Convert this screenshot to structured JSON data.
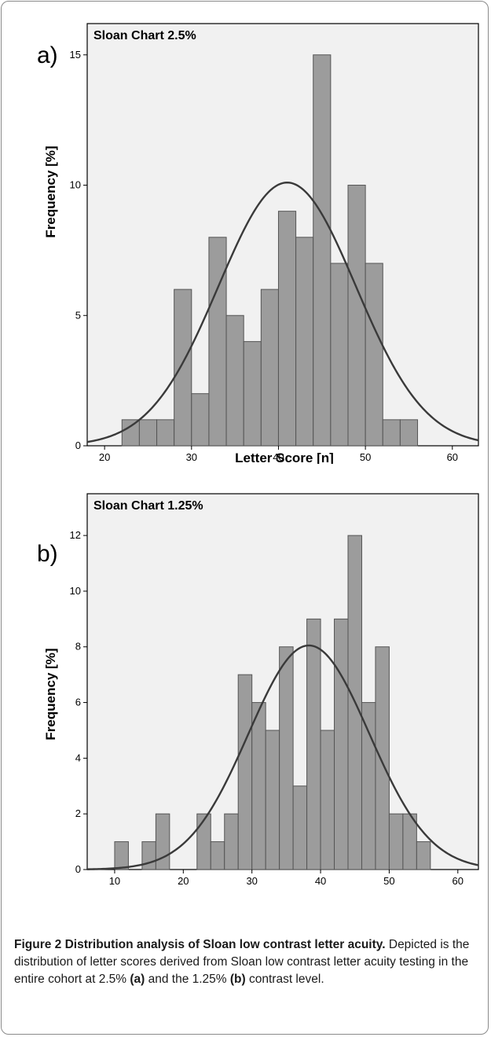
{
  "chart_data": [
    {
      "type": "bar",
      "panel_label": "a)",
      "title": "Sloan Chart 2.5%",
      "xlabel": "Letter Score [n]",
      "ylabel": "Frequency [%]",
      "xlim": [
        18,
        63
      ],
      "ylim": [
        0,
        16.2
      ],
      "x_ticks": [
        20,
        30,
        40,
        50,
        60
      ],
      "y_ticks": [
        0,
        5,
        10,
        15
      ],
      "bin_width": 2,
      "bins": [
        {
          "x0": 22,
          "value": 1
        },
        {
          "x0": 24,
          "value": 1
        },
        {
          "x0": 26,
          "value": 1
        },
        {
          "x0": 28,
          "value": 6
        },
        {
          "x0": 30,
          "value": 2
        },
        {
          "x0": 32,
          "value": 8
        },
        {
          "x0": 34,
          "value": 5
        },
        {
          "x0": 36,
          "value": 4
        },
        {
          "x0": 38,
          "value": 6
        },
        {
          "x0": 40,
          "value": 9
        },
        {
          "x0": 42,
          "value": 8
        },
        {
          "x0": 44,
          "value": 15
        },
        {
          "x0": 46,
          "value": 7
        },
        {
          "x0": 48,
          "value": 10
        },
        {
          "x0": 50,
          "value": 7
        },
        {
          "x0": 52,
          "value": 1
        },
        {
          "x0": 54,
          "value": 1
        }
      ],
      "normal_curve": {
        "mean": 41,
        "sd": 7.9,
        "peak": 10.1
      },
      "grid": false
    },
    {
      "type": "bar",
      "panel_label": "b)",
      "title": "Sloan Chart 1.25%",
      "xlabel": "",
      "ylabel": "Frequency [%]",
      "xlim": [
        6,
        63
      ],
      "ylim": [
        0,
        13.5
      ],
      "x_ticks": [
        10,
        20,
        30,
        40,
        50,
        60
      ],
      "y_ticks": [
        0,
        2,
        4,
        6,
        8,
        10,
        12
      ],
      "bin_width": 2,
      "bins": [
        {
          "x0": 10,
          "value": 1
        },
        {
          "x0": 14,
          "value": 1
        },
        {
          "x0": 16,
          "value": 2
        },
        {
          "x0": 22,
          "value": 2
        },
        {
          "x0": 24,
          "value": 1
        },
        {
          "x0": 26,
          "value": 2
        },
        {
          "x0": 28,
          "value": 7
        },
        {
          "x0": 30,
          "value": 6
        },
        {
          "x0": 32,
          "value": 5
        },
        {
          "x0": 34,
          "value": 8
        },
        {
          "x0": 36,
          "value": 3
        },
        {
          "x0": 38,
          "value": 9
        },
        {
          "x0": 40,
          "value": 5
        },
        {
          "x0": 42,
          "value": 9
        },
        {
          "x0": 44,
          "value": 12
        },
        {
          "x0": 46,
          "value": 6
        },
        {
          "x0": 48,
          "value": 8
        },
        {
          "x0": 50,
          "value": 2
        },
        {
          "x0": 52,
          "value": 2
        },
        {
          "x0": 54,
          "value": 1
        }
      ],
      "normal_curve": {
        "mean": 38.3,
        "sd": 8.8,
        "peak": 8.05
      },
      "grid": false
    }
  ],
  "caption": {
    "figure_label": "Figure 2 Distribution analysis of Sloan low contrast letter acuity.",
    "text_1": " Depicted is the distribution of letter scores derived from Sloan low contrast letter acuity testing in the entire cohort at 2.5% ",
    "ref_a": "(a)",
    "text_2": " and the 1.25% ",
    "ref_b": "(b)",
    "text_3": " contrast level."
  }
}
